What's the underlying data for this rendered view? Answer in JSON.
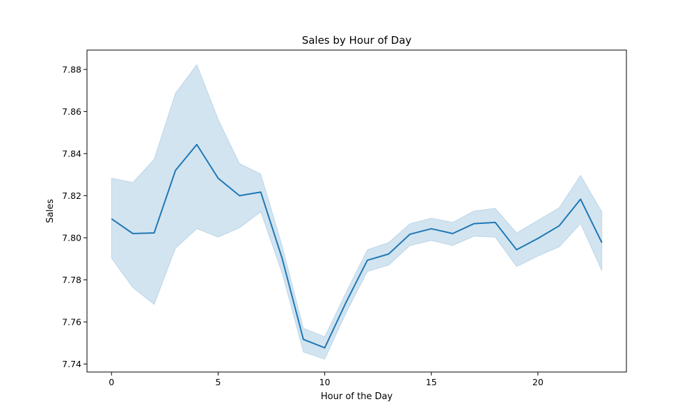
{
  "chart_data": {
    "type": "line",
    "title": "Sales by Hour of Day",
    "xlabel": "Hour of the Day",
    "ylabel": "Sales",
    "xlim": [
      -1.15,
      24.15
    ],
    "ylim": [
      7.7362,
      7.8892
    ],
    "grid": false,
    "legend": "none",
    "x_ticks": [
      0,
      5,
      10,
      15,
      20
    ],
    "x_tick_labels": [
      "0",
      "5",
      "10",
      "15",
      "20"
    ],
    "y_ticks": [
      7.74,
      7.76,
      7.78,
      7.8,
      7.82,
      7.84,
      7.86,
      7.88
    ],
    "y_tick_labels": [
      "7.74",
      "7.76",
      "7.78",
      "7.80",
      "7.82",
      "7.84",
      "7.86",
      "7.88"
    ],
    "x": [
      0,
      1,
      2,
      3,
      4,
      5,
      6,
      7,
      8,
      9,
      10,
      11,
      12,
      13,
      14,
      15,
      16,
      17,
      18,
      19,
      20,
      21,
      22,
      23
    ],
    "series": [
      {
        "values": [
          7.809,
          7.802,
          7.8023,
          7.832,
          7.8443,
          7.8283,
          7.82,
          7.8217,
          7.7903,
          7.7517,
          7.7477,
          7.7693,
          7.7893,
          7.7923,
          7.8017,
          7.8043,
          7.802,
          7.8067,
          7.8073,
          7.7943,
          7.7997,
          7.8057,
          7.8183,
          7.7977
        ],
        "ci_lower": [
          7.7903,
          7.7763,
          7.7683,
          7.795,
          7.8043,
          7.8003,
          7.8047,
          7.8123,
          7.7833,
          7.7457,
          7.7423,
          7.7643,
          7.784,
          7.787,
          7.7963,
          7.7987,
          7.7963,
          7.8007,
          7.8003,
          7.7863,
          7.7913,
          7.7957,
          7.8067,
          7.7843
        ],
        "ci_upper": [
          7.8283,
          7.8263,
          7.8373,
          7.8687,
          7.8823,
          7.8563,
          7.8353,
          7.8303,
          7.7963,
          7.757,
          7.753,
          7.774,
          7.7943,
          7.7977,
          7.8067,
          7.8093,
          7.8073,
          7.8127,
          7.814,
          7.8023,
          7.8083,
          7.8143,
          7.8297,
          7.8123
        ]
      }
    ]
  },
  "colors": {
    "line": "#1f77b4",
    "band": "#1f77b4"
  }
}
